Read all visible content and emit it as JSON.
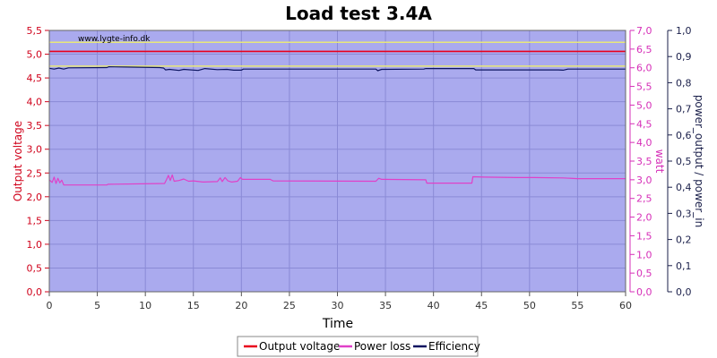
{
  "chart_data": {
    "type": "line",
    "title": "Load test 3.4A",
    "watermark": "www.lygte-info.dk",
    "xlabel": "Time",
    "x_range": [
      0,
      60
    ],
    "x_ticks": [
      "0",
      "5",
      "10",
      "15",
      "20",
      "25",
      "30",
      "35",
      "40",
      "45",
      "50",
      "55",
      "60"
    ],
    "axes": {
      "left": {
        "label": "Output voltage",
        "range": [
          0,
          5.5
        ],
        "ticks": [
          "0,0",
          "0,5",
          "1,0",
          "1,5",
          "2,0",
          "2,5",
          "3,0",
          "3,5",
          "4,0",
          "4,5",
          "5,0",
          "5,5"
        ],
        "color": "#d0021b"
      },
      "right1": {
        "label": "watt",
        "range": [
          0,
          7.0
        ],
        "ticks": [
          "0,0",
          "0,5",
          "1,0",
          "1,5",
          "2,0",
          "2,5",
          "3,0",
          "3,5",
          "4,0",
          "4,5",
          "5,0",
          "5,5",
          "6,0",
          "6,5",
          "7,0"
        ],
        "color": "#d62fb8"
      },
      "right2": {
        "label": "power_output / power_in",
        "range": [
          0,
          1.0
        ],
        "ticks": [
          "0,0",
          "0,1",
          "0,2",
          "0,3",
          "0,4",
          "0,5",
          "0,6",
          "0,7",
          "0,8",
          "0,9",
          "1,0"
        ],
        "color": "#1a1f4a"
      }
    },
    "grid": true,
    "plot_background": "#aaaaee",
    "reference_lines": [
      {
        "axis": "left",
        "value": 5.25,
        "color": "#e8e87a"
      },
      {
        "axis": "left",
        "value": 4.75,
        "color": "#e8e87a"
      }
    ],
    "legend_position": "bottom",
    "series": [
      {
        "name": "Output voltage",
        "axis": "left",
        "color": "#e8001c",
        "points": [
          [
            0,
            5.06
          ],
          [
            60,
            5.06
          ]
        ]
      },
      {
        "name": "Power loss",
        "axis": "right1",
        "color": "#e040c8",
        "points": [
          [
            0,
            3.0
          ],
          [
            0.3,
            2.93
          ],
          [
            0.5,
            3.07
          ],
          [
            0.7,
            2.9
          ],
          [
            0.9,
            3.04
          ],
          [
            1.1,
            2.92
          ],
          [
            1.3,
            2.99
          ],
          [
            1.5,
            2.86
          ],
          [
            2,
            2.86
          ],
          [
            6,
            2.86
          ],
          [
            6.1,
            2.88
          ],
          [
            12,
            2.9
          ],
          [
            12.2,
            3.0
          ],
          [
            12.4,
            3.12
          ],
          [
            12.6,
            2.98
          ],
          [
            12.8,
            3.13
          ],
          [
            13,
            2.96
          ],
          [
            13.5,
            2.98
          ],
          [
            14,
            3.02
          ],
          [
            14.5,
            2.96
          ],
          [
            15,
            2.97
          ],
          [
            16,
            2.94
          ],
          [
            17.5,
            2.95
          ],
          [
            17.8,
            3.05
          ],
          [
            18,
            2.95
          ],
          [
            18.3,
            3.06
          ],
          [
            18.6,
            2.97
          ],
          [
            19,
            2.94
          ],
          [
            19.6,
            2.96
          ],
          [
            19.9,
            3.06
          ],
          [
            20.1,
            3.01
          ],
          [
            23,
            3.01
          ],
          [
            23.3,
            2.97
          ],
          [
            34,
            2.96
          ],
          [
            34.3,
            3.04
          ],
          [
            34.6,
            3.01
          ],
          [
            39.2,
            3.0
          ],
          [
            39.3,
            2.91
          ],
          [
            44,
            2.91
          ],
          [
            44.1,
            3.08
          ],
          [
            45.3,
            3.07
          ],
          [
            48.8,
            3.06
          ],
          [
            50.5,
            3.06
          ],
          [
            53.5,
            3.05
          ],
          [
            55,
            3.03
          ],
          [
            60,
            3.03
          ]
        ]
      },
      {
        "name": "Efficiency",
        "axis": "right2",
        "color": "#0c1460",
        "points": [
          [
            0,
            0.855
          ],
          [
            0.5,
            0.852
          ],
          [
            1,
            0.856
          ],
          [
            1.5,
            0.852
          ],
          [
            2,
            0.857
          ],
          [
            6,
            0.858
          ],
          [
            6.2,
            0.861
          ],
          [
            8,
            0.86
          ],
          [
            11.5,
            0.858
          ],
          [
            11.9,
            0.856
          ],
          [
            12.1,
            0.849
          ],
          [
            12.5,
            0.851
          ],
          [
            13.5,
            0.847
          ],
          [
            14,
            0.851
          ],
          [
            15.5,
            0.847
          ],
          [
            16.2,
            0.854
          ],
          [
            17.5,
            0.85
          ],
          [
            18.5,
            0.851
          ],
          [
            19.2,
            0.848
          ],
          [
            20,
            0.848
          ],
          [
            20.2,
            0.852
          ],
          [
            34,
            0.852
          ],
          [
            34.2,
            0.846
          ],
          [
            34.6,
            0.851
          ],
          [
            39,
            0.852
          ],
          [
            39.2,
            0.854
          ],
          [
            44.2,
            0.854
          ],
          [
            44.4,
            0.849
          ],
          [
            53,
            0.849
          ],
          [
            53.5,
            0.848
          ],
          [
            54,
            0.852
          ],
          [
            60,
            0.852
          ]
        ]
      }
    ]
  }
}
